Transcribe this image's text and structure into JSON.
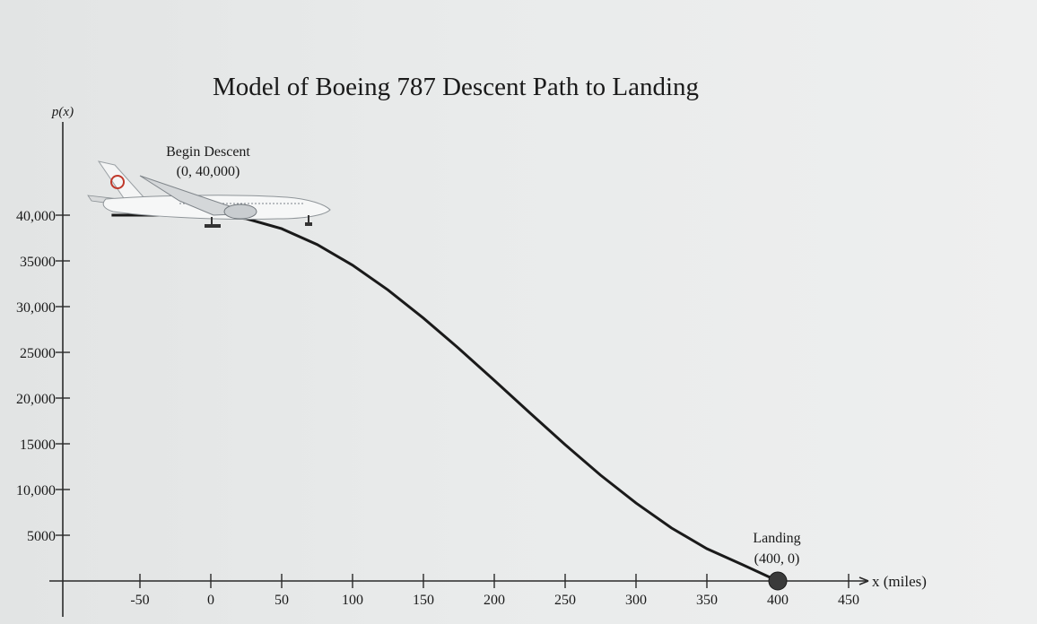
{
  "chart_data": {
    "type": "line",
    "title": "Model of Boeing 787 Descent Path to Landing",
    "xlabel": "x (miles)",
    "ylabel": "p(x)",
    "xlim": [
      -70,
      470
    ],
    "ylim": [
      -3000,
      46000
    ],
    "x_ticks": [
      -50,
      0,
      50,
      100,
      150,
      200,
      250,
      300,
      350,
      400,
      450
    ],
    "x_tick_labels": [
      "-50",
      "0",
      "50",
      "100",
      "150",
      "200",
      "250",
      "300",
      "350",
      "400",
      "450"
    ],
    "y_ticks": [
      5000,
      10000,
      15000,
      20000,
      25000,
      30000,
      35000,
      40000
    ],
    "y_tick_labels": [
      "5000",
      "10,000",
      "15000",
      "20,000",
      "25000",
      "30,000",
      "35000",
      "40,000"
    ],
    "grid": false,
    "series": [
      {
        "x": [
          -70,
          0,
          25,
          50,
          75,
          100,
          125,
          150,
          175,
          200,
          225,
          250,
          275,
          300,
          325,
          350,
          375,
          400
        ],
        "y": [
          40000,
          40000,
          39616,
          38516,
          36797,
          34531,
          31819,
          28750,
          25422,
          21931,
          18391,
          14906,
          11571,
          8516,
          5797,
          3531,
          1797,
          0
        ],
        "color": "#1a1a1a"
      }
    ],
    "annotations": [
      {
        "label": "Begin Descent",
        "coords": "(0, 40,000)",
        "x": 0,
        "y": 40000
      },
      {
        "label": "Landing",
        "coords": "(400, 0)",
        "x": 400,
        "y": 0
      }
    ],
    "landing_marker_color": "#3a3a3a"
  }
}
